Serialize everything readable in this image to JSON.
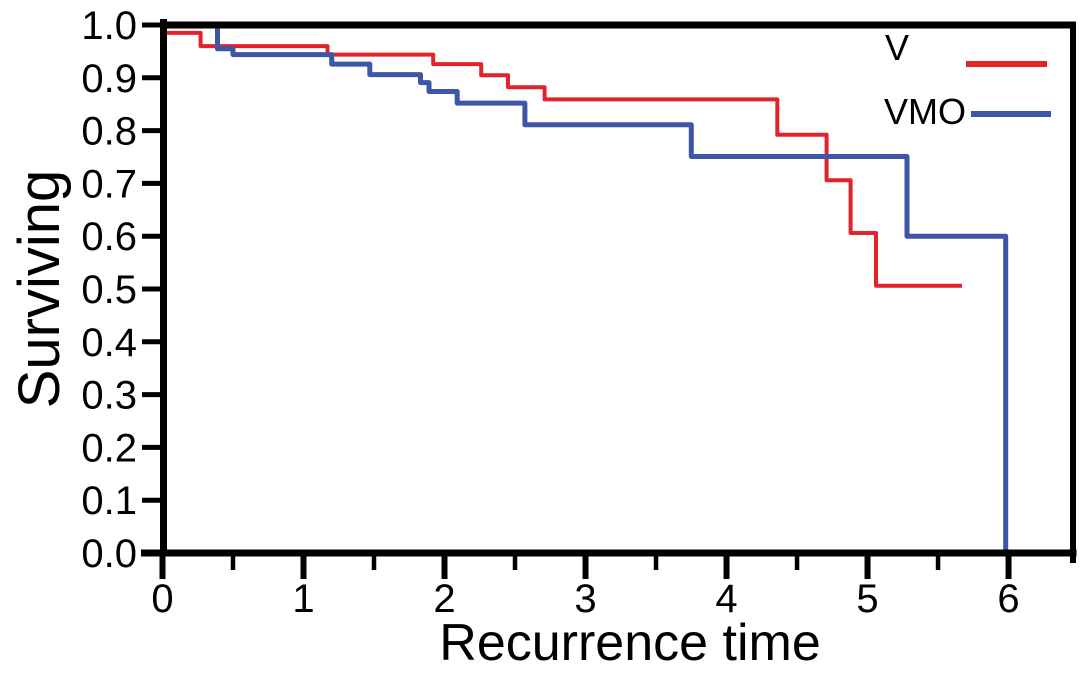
{
  "chart_data": {
    "type": "line",
    "subtype": "step-survival-curve",
    "title": "",
    "xlabel": "Recurrence time",
    "ylabel": "Surviving",
    "xlim": [
      0,
      6.45
    ],
    "ylim": [
      0,
      1.0
    ],
    "grid": false,
    "legend_position": "top-right",
    "x_ticks": [
      {
        "value": 0,
        "label": "0"
      },
      {
        "value": 1,
        "label": "1"
      },
      {
        "value": 2,
        "label": "2"
      },
      {
        "value": 3,
        "label": "3"
      },
      {
        "value": 4,
        "label": "4"
      },
      {
        "value": 5,
        "label": "5"
      },
      {
        "value": 6,
        "label": "6"
      }
    ],
    "x_minor_ticks": [
      0.5,
      1.5,
      2.5,
      3.5,
      4.5,
      5.5
    ],
    "y_ticks": [
      {
        "value": 1.0,
        "label": "1.0"
      },
      {
        "value": 0.9,
        "label": "0.9"
      },
      {
        "value": 0.8,
        "label": "0.8"
      },
      {
        "value": 0.7,
        "label": "0.7"
      },
      {
        "value": 0.6,
        "label": "0.6"
      },
      {
        "value": 0.5,
        "label": "0.5"
      },
      {
        "value": 0.4,
        "label": "0.4"
      },
      {
        "value": 0.3,
        "label": "0.3"
      },
      {
        "value": 0.2,
        "label": "0.2"
      },
      {
        "value": 0.1,
        "label": "0.1"
      },
      {
        "value": 0.0,
        "label": "0.0"
      }
    ],
    "series": [
      {
        "name": "V",
        "color": "#e2232b",
        "stroke_width": 4,
        "end_time": 5.67,
        "points": [
          [
            0,
            0.985
          ],
          [
            0.27,
            0.96
          ],
          [
            1.17,
            0.944
          ],
          [
            1.92,
            0.926
          ],
          [
            2.26,
            0.905
          ],
          [
            2.45,
            0.882
          ],
          [
            2.71,
            0.859
          ],
          [
            4.36,
            0.792
          ],
          [
            4.71,
            0.706
          ],
          [
            4.88,
            0.606
          ],
          [
            5.06,
            0.506
          ]
        ]
      },
      {
        "name": "VMO",
        "color": "#3d56a7",
        "stroke_width": 5,
        "end_time": 5.98,
        "points": [
          [
            0,
            1.0
          ],
          [
            0.39,
            0.955
          ],
          [
            0.5,
            0.944
          ],
          [
            1.2,
            0.926
          ],
          [
            1.47,
            0.906
          ],
          [
            1.83,
            0.891
          ],
          [
            1.89,
            0.874
          ],
          [
            2.09,
            0.852
          ],
          [
            2.57,
            0.811
          ],
          [
            3.75,
            0.751
          ],
          [
            5.28,
            0.6
          ],
          [
            5.98,
            0.0
          ]
        ]
      }
    ]
  }
}
